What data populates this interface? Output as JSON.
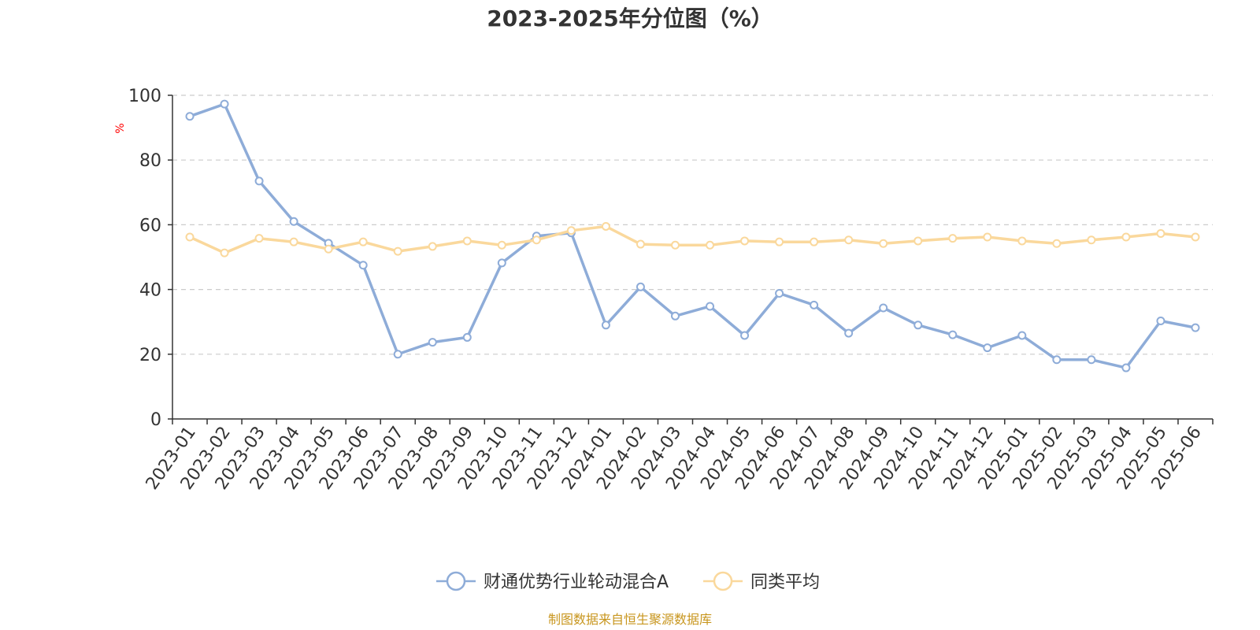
{
  "chart_data": {
    "type": "line",
    "title": "2023-2025年分位图（%）",
    "ylabel": "%",
    "ylim": [
      0,
      100
    ],
    "yticks": [
      0,
      20,
      40,
      60,
      80,
      100
    ],
    "grid": true,
    "legend_position": "bottom-center",
    "x": [
      "2023-01",
      "2023-02",
      "2023-03",
      "2023-04",
      "2023-05",
      "2023-06",
      "2023-07",
      "2023-08",
      "2023-09",
      "2023-10",
      "2023-11",
      "2023-12",
      "2024-01",
      "2024-02",
      "2024-03",
      "2024-04",
      "2024-05",
      "2024-06",
      "2024-07",
      "2024-08",
      "2024-09",
      "2024-10",
      "2024-11",
      "2024-12",
      "2025-01",
      "2025-02",
      "2025-03",
      "2025-04",
      "2025-05",
      "2025-06"
    ],
    "series": [
      {
        "name": "财通优势行业轮动混合A",
        "color": "#8eacd8",
        "values": [
          93.5,
          97.3,
          73.5,
          61.0,
          54.3,
          47.5,
          20.0,
          23.7,
          25.2,
          48.2,
          56.5,
          57.5,
          29.0,
          40.8,
          31.8,
          34.8,
          25.8,
          38.8,
          35.2,
          26.5,
          34.3,
          29.0,
          26.0,
          22.0,
          25.8,
          18.3,
          18.3,
          15.8,
          30.3,
          28.2
        ]
      },
      {
        "name": "同类平均",
        "color": "#fad89c",
        "values": [
          56.2,
          51.3,
          55.8,
          54.7,
          52.5,
          54.7,
          51.8,
          53.3,
          55.0,
          53.7,
          55.3,
          58.2,
          59.5,
          54.0,
          53.7,
          53.7,
          55.0,
          54.7,
          54.7,
          55.3,
          54.2,
          55.0,
          55.8,
          56.2,
          55.0,
          54.2,
          55.3,
          56.2,
          57.3,
          56.2
        ]
      }
    ],
    "axis_color": "#333333",
    "grid_color": "#cccccc",
    "unit_color": "#ff0000"
  },
  "source_text": "制图数据来自恒生聚源数据库",
  "source_color": "#c8961e"
}
